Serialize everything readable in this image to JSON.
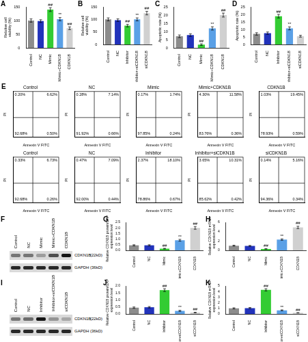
{
  "chart_data": [
    {
      "panel": "A",
      "type": "bar",
      "categories": [
        "Control",
        "NC",
        "Mimic",
        "Mimic+CDKN1B",
        "CDKN1B"
      ],
      "values": [
        100,
        98,
        140,
        105,
        72
      ],
      "errors": [
        6,
        5,
        7,
        6,
        5
      ],
      "colors": [
        "#8c8c8c",
        "#2233bb",
        "#33cc33",
        "#5aa0e6",
        "#d0d0d0"
      ],
      "y_label": [
        "Relative cell",
        "viability (%)"
      ],
      "ylim": [
        0,
        150
      ],
      "yticks": [
        0,
        50,
        100,
        150
      ],
      "annotations": [
        {
          "category": "Mimic",
          "text": "##"
        },
        {
          "category": "Mimic+CDKN1B",
          "text": "**"
        },
        {
          "category": "CDKN1B",
          "text": "##"
        }
      ]
    },
    {
      "panel": "B",
      "type": "bar",
      "categories": [
        "Control",
        "NC",
        "Inhibitor",
        "Inhibitor+siCDKN1B",
        "siCDKN1B"
      ],
      "values": [
        100,
        97,
        75,
        100,
        125
      ],
      "errors": [
        6,
        5,
        5,
        6,
        7
      ],
      "colors": [
        "#8c8c8c",
        "#2233bb",
        "#33cc33",
        "#5aa0e6",
        "#d0d0d0"
      ],
      "y_label": [
        "Relative cell",
        "viability (%)"
      ],
      "ylim": [
        0,
        150
      ],
      "yticks": [
        0,
        50,
        100,
        150
      ],
      "annotations": [
        {
          "category": "Inhibitor",
          "text": "##"
        },
        {
          "category": "Inhibitor+siCDKN1B",
          "text": "**"
        },
        {
          "category": "siCDKN1B",
          "text": "##"
        }
      ]
    },
    {
      "panel": "C",
      "type": "bar",
      "categories": [
        "Control",
        "NC",
        "Mimic",
        "Mimic+CDKN1B",
        "CDKN1B"
      ],
      "values": [
        7.1,
        7.8,
        2,
        11.9,
        20
      ],
      "errors": [
        0.8,
        0.8,
        0.5,
        1,
        1.2
      ],
      "colors": [
        "#8c8c8c",
        "#2233bb",
        "#33cc33",
        "#5aa0e6",
        "#d0d0d0"
      ],
      "y_label": [
        "Apoptotic rate (%)"
      ],
      "ylim": [
        0,
        25
      ],
      "yticks": [
        0,
        5,
        10,
        15,
        20,
        25
      ],
      "annotations": [
        {
          "category": "Mimic",
          "text": "##"
        },
        {
          "category": "Mimic+CDKN1B",
          "text": "**"
        },
        {
          "category": "CDKN1B",
          "text": "##"
        }
      ]
    },
    {
      "panel": "D",
      "type": "bar",
      "categories": [
        "Control",
        "NC",
        "Inhibitor",
        "Inhibitor+siCDKN1B",
        "siCDKN1B"
      ],
      "values": [
        7,
        7.5,
        18.8,
        10.7,
        5.5
      ],
      "errors": [
        0.8,
        0.8,
        1.2,
        1,
        0.6
      ],
      "colors": [
        "#8c8c8c",
        "#2233bb",
        "#33cc33",
        "#5aa0e6",
        "#d0d0d0"
      ],
      "y_label": [
        "Apoptotic rate (%)"
      ],
      "ylim": [
        0,
        25
      ],
      "yticks": [
        0,
        5,
        10,
        15,
        20,
        25
      ],
      "annotations": [
        {
          "category": "Inhibitor",
          "text": "##"
        },
        {
          "category": "Inhibitor+siCDKN1B",
          "text": "**"
        }
      ]
    },
    {
      "panel": "E",
      "type": "scatter",
      "title": "Control",
      "x_label": "Annexin V FITC",
      "y_label": "PI",
      "xlim": [
        0,
        7
      ],
      "ylim": [
        0,
        7
      ],
      "tick_labels": false,
      "gates": {
        "x": 3,
        "y": 3
      },
      "quadrants": [
        {
          "position": "upper left",
          "value": 0.2,
          "label": "0.20%"
        },
        {
          "position": "upper right",
          "value": 6.62,
          "label": "6.62%"
        },
        {
          "position": "lower left",
          "value": 92.68,
          "label": "92.68%"
        },
        {
          "position": "lower right",
          "value": 0.5,
          "label": "0.50%"
        }
      ]
    },
    {
      "type": "scatter",
      "title": "NC",
      "x_label": "Annexin V FITC",
      "y_label": "PI",
      "xlim": [
        0,
        7
      ],
      "ylim": [
        0,
        7
      ],
      "tick_labels": false,
      "gates": {
        "x": 3,
        "y": 3
      },
      "quadrants": [
        {
          "position": "upper left",
          "value": 0.28,
          "label": "0.28%"
        },
        {
          "position": "upper right",
          "value": 7.14,
          "label": "7.14%"
        },
        {
          "position": "lower left",
          "value": 91.92,
          "label": "91.92%"
        },
        {
          "position": "lower right",
          "value": 0.66,
          "label": "0.66%"
        }
      ]
    },
    {
      "type": "scatter",
      "title": "Mimic",
      "x_label": "Annexin V FITC",
      "y_label": "PI",
      "xlim": [
        0,
        7
      ],
      "ylim": [
        0,
        7
      ],
      "tick_labels": false,
      "gates": {
        "x": 3,
        "y": 3
      },
      "quadrants": [
        {
          "position": "upper left",
          "value": 0.17,
          "label": "0.17%"
        },
        {
          "position": "upper right",
          "value": 1.74,
          "label": "1.74%"
        },
        {
          "position": "lower left",
          "value": 97.85,
          "label": "97.85%"
        },
        {
          "position": "lower right",
          "value": 0.24,
          "label": "0.24%"
        }
      ]
    },
    {
      "type": "scatter",
      "title": "Mimic+CDKN1B",
      "x_label": "Annexin V FITC",
      "y_label": "PI",
      "xlim": [
        0,
        7
      ],
      "ylim": [
        0,
        7
      ],
      "tick_labels": false,
      "gates": {
        "x": 3,
        "y": 3
      },
      "quadrants": [
        {
          "position": "upper left",
          "value": 4.3,
          "label": "4.30%"
        },
        {
          "position": "upper right",
          "value": 11.58,
          "label": "11.58%"
        },
        {
          "position": "lower left",
          "value": 83.76,
          "label": "83.76%"
        },
        {
          "position": "lower right",
          "value": 0.36,
          "label": "0.36%"
        }
      ]
    },
    {
      "type": "scatter",
      "title": "CDKN1B",
      "x_label": "Annexin V FITC",
      "y_label": "PI",
      "xlim": [
        0,
        7
      ],
      "ylim": [
        0,
        7
      ],
      "tick_labels": false,
      "gates": {
        "x": 3,
        "y": 3
      },
      "quadrants": [
        {
          "position": "upper left",
          "value": 1.03,
          "label": "1.03%"
        },
        {
          "position": "upper right",
          "value": 19.45,
          "label": "19.45%"
        },
        {
          "position": "lower left",
          "value": 78.93,
          "label": "78.93%"
        },
        {
          "position": "lower right",
          "value": 0.59,
          "label": "0.59%"
        }
      ]
    },
    {
      "type": "scatter",
      "title": "Control",
      "x_label": "Annexin V FITC",
      "y_label": "PI",
      "xlim": [
        0,
        7
      ],
      "ylim": [
        0,
        7
      ],
      "tick_labels": false,
      "gates": {
        "x": 3,
        "y": 3
      },
      "quadrants": [
        {
          "position": "upper left",
          "value": 0.33,
          "label": "0.33%"
        },
        {
          "position": "upper right",
          "value": 6.73,
          "label": "6.73%"
        },
        {
          "position": "lower left",
          "value": 92.68,
          "label": "92.68%"
        },
        {
          "position": "lower right",
          "value": 0.26,
          "label": "0.26%"
        }
      ]
    },
    {
      "type": "scatter",
      "title": "NC",
      "x_label": "Annexin V FITC",
      "y_label": "PI",
      "xlim": [
        0,
        7
      ],
      "ylim": [
        0,
        7
      ],
      "tick_labels": false,
      "gates": {
        "x": 3,
        "y": 3
      },
      "quadrants": [
        {
          "position": "upper left",
          "value": 0.47,
          "label": "0.47%"
        },
        {
          "position": "upper right",
          "value": 7.09,
          "label": "7.09%"
        },
        {
          "position": "lower left",
          "value": 92.0,
          "label": "92.00%"
        },
        {
          "position": "lower right",
          "value": 0.44,
          "label": "0.44%"
        }
      ]
    },
    {
      "type": "scatter",
      "title": "Inhibitor",
      "x_label": "Annexin V FITC",
      "y_label": "PI",
      "xlim": [
        0,
        7
      ],
      "ylim": [
        0,
        7
      ],
      "tick_labels": false,
      "gates": {
        "x": 3,
        "y": 3
      },
      "quadrants": [
        {
          "position": "upper left",
          "value": 2.37,
          "label": "2.37%"
        },
        {
          "position": "upper right",
          "value": 18.1,
          "label": "18.10%"
        },
        {
          "position": "lower left",
          "value": 78.86,
          "label": "78.86%"
        },
        {
          "position": "lower right",
          "value": 0.67,
          "label": "0.67%"
        }
      ]
    },
    {
      "type": "scatter",
      "title": "Inhibitor+siCDKN1B",
      "x_label": "Annexin V FITC",
      "y_label": "PI",
      "xlim": [
        0,
        7
      ],
      "ylim": [
        0,
        7
      ],
      "tick_labels": false,
      "gates": {
        "x": 3,
        "y": 3
      },
      "quadrants": [
        {
          "position": "upper left",
          "value": 3.65,
          "label": "3.65%"
        },
        {
          "position": "upper right",
          "value": 10.31,
          "label": "10.31%"
        },
        {
          "position": "lower left",
          "value": 85.62,
          "label": "85.62%"
        },
        {
          "position": "lower right",
          "value": 0.42,
          "label": "0.42%"
        }
      ]
    },
    {
      "type": "scatter",
      "title": "siCDKN1B",
      "x_label": "Annexin V FITC",
      "y_label": "PI",
      "xlim": [
        0,
        7
      ],
      "ylim": [
        0,
        7
      ],
      "tick_labels": false,
      "gates": {
        "x": 3,
        "y": 3
      },
      "quadrants": [
        {
          "position": "upper left",
          "value": 0.14,
          "label": "0.14%"
        },
        {
          "position": "upper right",
          "value": 5.16,
          "label": "5.16%"
        },
        {
          "position": "lower left",
          "value": 94.36,
          "label": "94.36%"
        },
        {
          "position": "lower right",
          "value": 0.34,
          "label": "0.34%"
        }
      ]
    },
    {
      "panel": "G",
      "type": "bar",
      "categories": [
        "Control",
        "NC",
        "Mimic",
        "Mimic+CDKN1B",
        "CDKN1B"
      ],
      "values": [
        0.45,
        0.45,
        0.15,
        0.9,
        2.0
      ],
      "errors": [
        0.05,
        0.05,
        0.03,
        0.08,
        0.12
      ],
      "colors": [
        "#8c8c8c",
        "#2233bb",
        "#33cc33",
        "#5aa0e6",
        "#d0d0d0"
      ],
      "y_label": [
        "Relative CDKN1B protein/GAPDH",
        "expression level"
      ],
      "ylim": [
        0,
        2.5
      ],
      "yticks": [
        {
          "value": 0,
          "label": "0.0"
        },
        {
          "value": 0.5,
          "label": "0.5"
        },
        {
          "value": 1,
          "label": "1.0"
        },
        {
          "value": 1.5,
          "label": "1.5"
        },
        {
          "value": 2,
          "label": "2.0"
        },
        {
          "value": 2.5,
          "label": "2.5"
        }
      ],
      "annotations": [
        {
          "category": "Mimic",
          "text": "##"
        },
        {
          "category": "Mimic+CDKN1B",
          "text": "**"
        },
        {
          "category": "CDKN1B",
          "text": "##"
        }
      ]
    },
    {
      "panel": "H",
      "type": "bar",
      "categories": [
        "Control",
        "NC",
        "Mimic",
        "Mimic+CDKN1B",
        "CDKN1B"
      ],
      "values": [
        1,
        0.95,
        0.3,
        2.3,
        4.9
      ],
      "errors": [
        0.1,
        0.1,
        0.05,
        0.15,
        0.25
      ],
      "colors": [
        "#8c8c8c",
        "#2233bb",
        "#33cc33",
        "#5aa0e6",
        "#d0d0d0"
      ],
      "y_label": [
        "Relative CDKN1B mRNA",
        "expression level"
      ],
      "ylim": [
        0,
        6
      ],
      "yticks": [
        0,
        2,
        4,
        6
      ],
      "annotations": [
        {
          "category": "Mimic",
          "text": "##"
        },
        {
          "category": "Mimic+CDKN1B",
          "text": "**"
        },
        {
          "category": "CDKN1B",
          "text": "##"
        }
      ]
    },
    {
      "panel": "J",
      "type": "bar",
      "categories": [
        "Control",
        "NC",
        "Inhibitor",
        "Inhibitor+siCDKN1B",
        "siCDKN1B"
      ],
      "values": [
        0.45,
        0.48,
        1.7,
        0.22,
        0.1
      ],
      "errors": [
        0.05,
        0.05,
        0.1,
        0.04,
        0.02
      ],
      "colors": [
        "#8c8c8c",
        "#2233bb",
        "#33cc33",
        "#5aa0e6",
        "#d0d0d0"
      ],
      "y_label": [
        "Relative CDKN1B protein/GAPDH",
        "expression level"
      ],
      "ylim": [
        0,
        2
      ],
      "yticks": [
        {
          "value": 0,
          "label": "0.0"
        },
        {
          "value": 0.5,
          "label": "0.5"
        },
        {
          "value": 1,
          "label": "1.0"
        },
        {
          "value": 1.5,
          "label": "1.5"
        },
        {
          "value": 2,
          "label": "2.0"
        }
      ],
      "annotations": [
        {
          "category": "Inhibitor",
          "text": "##"
        },
        {
          "category": "Inhibitor+siCDKN1B",
          "text": "**"
        },
        {
          "category": "siCDKN1B",
          "text": "##"
        }
      ]
    },
    {
      "panel": "K",
      "type": "bar",
      "categories": [
        "Control",
        "NC",
        "Inhibitor",
        "Inhibitor+siCDKN1B",
        "siCDKN1B"
      ],
      "values": [
        1,
        1.05,
        4.3,
        0.65,
        0.2
      ],
      "errors": [
        0.1,
        0.1,
        0.2,
        0.08,
        0.03
      ],
      "colors": [
        "#8c8c8c",
        "#2233bb",
        "#33cc33",
        "#5aa0e6",
        "#d0d0d0"
      ],
      "y_label": [
        "Relative CDKN1B mRNA",
        "expression level"
      ],
      "ylim": [
        0,
        5
      ],
      "yticks": [
        0,
        1,
        2,
        3,
        4,
        5
      ],
      "annotations": [
        {
          "category": "Inhibitor",
          "text": "##"
        },
        {
          "category": "Inhibitor+siCDKN1B",
          "text": "**"
        },
        {
          "category": "siCDKN1B",
          "text": "##"
        }
      ]
    }
  ],
  "blots": [
    {
      "panel": "F",
      "lanes": [
        "Control",
        "NC",
        "Mimic",
        "Mimic+CDKN1B",
        "CDKN1B"
      ],
      "bands": [
        {
          "label": "CDKN1B",
          "size": "(22kD)",
          "intensity": [
            0.5,
            0.5,
            0.3,
            0.7,
            1
          ]
        },
        {
          "label": "GAPDH",
          "size": "(36kD)",
          "intensity": [
            0.9,
            0.9,
            0.9,
            0.9,
            0.9
          ]
        }
      ]
    },
    {
      "panel": "I",
      "lanes": [
        "Control",
        "NC",
        "Inhibitor",
        "Inhibitor+siCDKN1B",
        "siCDKN1B"
      ],
      "bands": [
        {
          "label": "CDKN1B",
          "size": "(22kD)",
          "intensity": [
            0.5,
            0.55,
            1,
            0.35,
            0.25
          ]
        },
        {
          "label": "GAPDH",
          "size": "(36kD)",
          "intensity": [
            0.9,
            0.9,
            0.9,
            0.9,
            0.9
          ]
        }
      ]
    }
  ]
}
